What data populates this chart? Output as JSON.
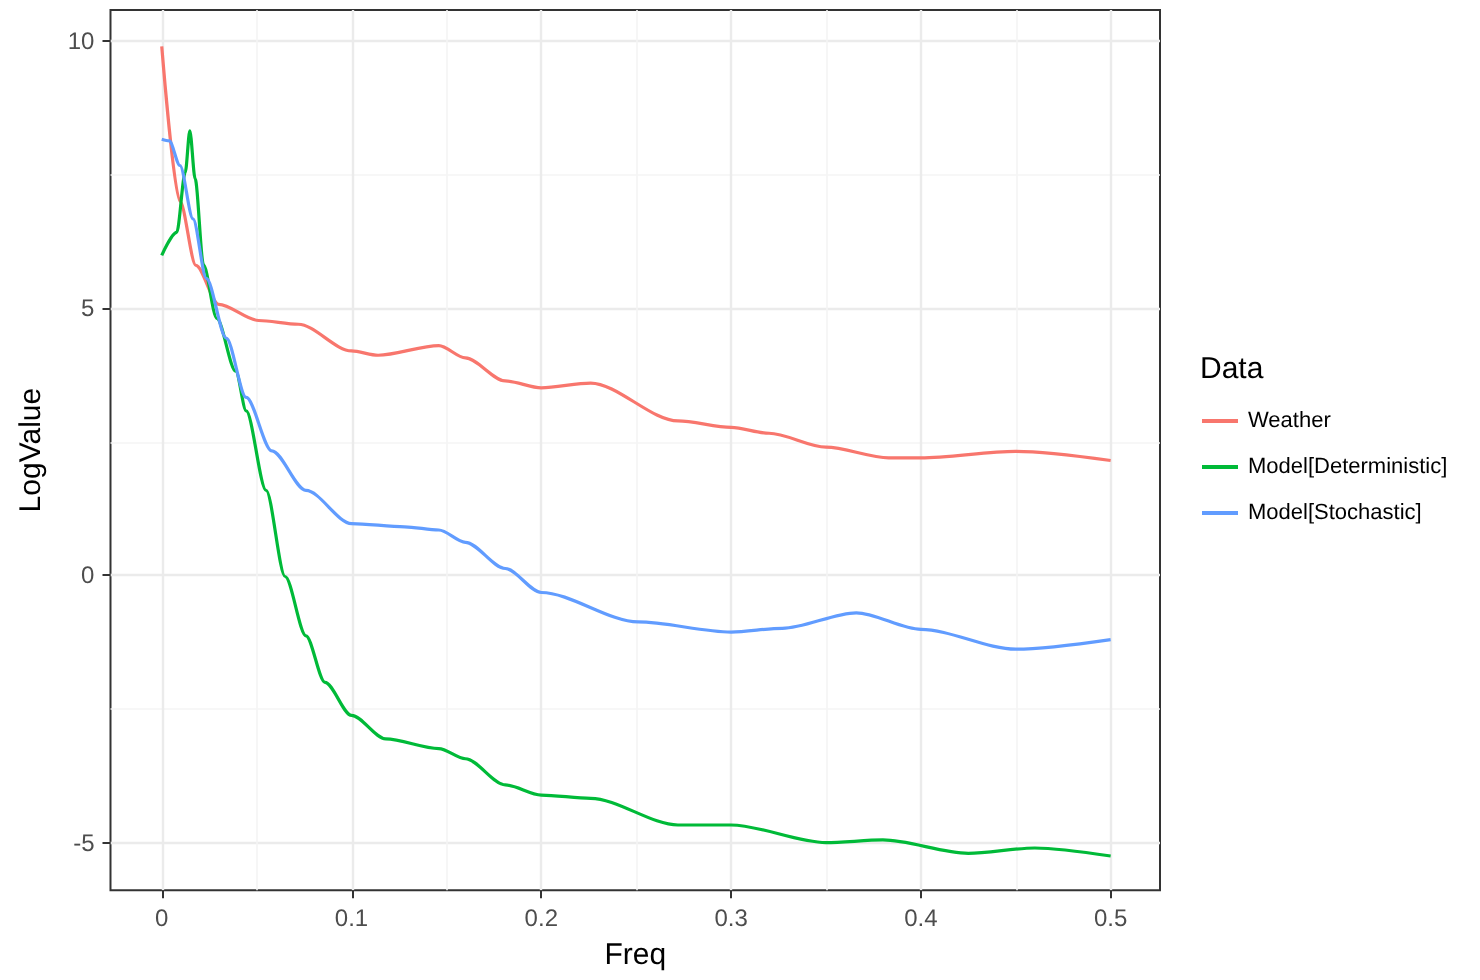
{
  "chart_data": {
    "type": "line",
    "xlabel": "Freq",
    "ylabel": "LogValue",
    "legend_title": "Data",
    "legend": "right",
    "grid": true,
    "marker": "none",
    "line_style": "solid",
    "xlim": [
      -0.027,
      0.526
    ],
    "xticks": [
      0,
      0.1,
      0.2,
      0.3,
      0.4,
      0.5
    ],
    "ylim": [
      -5.89,
      10.58
    ],
    "yticks": [
      -5,
      0,
      5,
      10
    ],
    "series": [
      {
        "name": "Weather",
        "color": "#f8766d",
        "x": [
          0,
          0.0096,
          0.018,
          0.03,
          0.051,
          0.072,
          0.1,
          0.114,
          0.146,
          0.16,
          0.181,
          0.2,
          0.226,
          0.272,
          0.3,
          0.32,
          0.35,
          0.383,
          0.4,
          0.45,
          0.5
        ],
        "values": [
          9.9,
          7.0,
          5.8,
          5.07,
          4.77,
          4.7,
          4.2,
          4.12,
          4.3,
          4.07,
          3.64,
          3.51,
          3.6,
          2.89,
          2.77,
          2.66,
          2.4,
          2.2,
          2.2,
          2.32,
          2.15
        ]
      },
      {
        "name": "Model[Deterministic]",
        "color": "#00ba38",
        "x": [
          0,
          0.0079,
          0.0124,
          0.0148,
          0.0176,
          0.022,
          0.029,
          0.039,
          0.0445,
          0.055,
          0.065,
          0.076,
          0.086,
          0.1,
          0.118,
          0.146,
          0.16,
          0.181,
          0.2,
          0.226,
          0.272,
          0.3,
          0.35,
          0.38,
          0.425,
          0.46,
          0.5
        ],
        "values": [
          5.99,
          6.42,
          7.54,
          8.32,
          7.42,
          5.81,
          4.81,
          3.82,
          3.08,
          1.59,
          -0.02,
          -1.13,
          -2.0,
          -2.62,
          -3.06,
          -3.24,
          -3.43,
          -3.92,
          -4.11,
          -4.17,
          -4.67,
          -4.67,
          -5.0,
          -4.95,
          -5.2,
          -5.1,
          -5.25
        ]
      },
      {
        "name": "Model[Stochastic]",
        "color": "#619cff",
        "x": [
          0,
          0.004,
          0.0096,
          0.0165,
          0.0235,
          0.034,
          0.0445,
          0.058,
          0.076,
          0.1,
          0.128,
          0.146,
          0.16,
          0.181,
          0.2,
          0.251,
          0.3,
          0.327,
          0.366,
          0.4,
          0.45,
          0.5
        ],
        "values": [
          8.16,
          8.13,
          7.67,
          6.67,
          5.56,
          4.44,
          3.33,
          2.33,
          1.59,
          0.97,
          0.91,
          0.85,
          0.62,
          0.13,
          -0.32,
          -0.87,
          -1.06,
          -0.99,
          -0.7,
          -1.01,
          -1.38,
          -1.2
        ]
      }
    ]
  }
}
